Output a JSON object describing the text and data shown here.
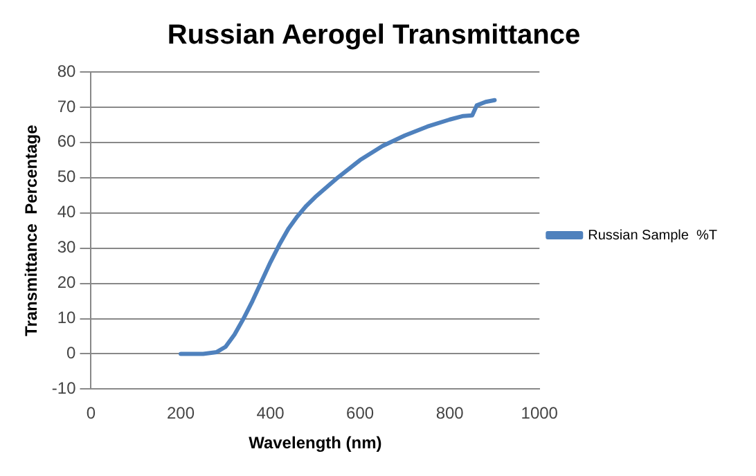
{
  "chart_data": {
    "type": "line",
    "title": "Russian Aerogel Transmittance",
    "xlabel": "Wavelength (nm)",
    "ylabel": "Transmittance  Percentage",
    "series": [
      {
        "name": "Russian Sample  %T",
        "color": "#4f81bd",
        "x": [
          200,
          250,
          280,
          300,
          320,
          340,
          360,
          380,
          400,
          420,
          440,
          460,
          480,
          500,
          550,
          600,
          650,
          700,
          750,
          800,
          830,
          850,
          860,
          880,
          900
        ],
        "values": [
          0,
          0,
          0.5,
          2,
          5.5,
          10,
          15,
          20.5,
          26,
          31,
          35.5,
          39,
          42,
          44.5,
          50,
          55,
          59,
          62,
          64.5,
          66.5,
          67.5,
          67.7,
          70.5,
          71.5,
          72
        ]
      }
    ],
    "xlim": [
      0,
      1000
    ],
    "xticks": [
      0,
      200,
      400,
      600,
      800,
      1000
    ],
    "ylim": [
      -10,
      80
    ],
    "yticks": [
      -10,
      0,
      10,
      20,
      30,
      40,
      50,
      60,
      70,
      80
    ],
    "grid": "y",
    "legend": "right",
    "marker": "none",
    "line_style": "solid"
  }
}
